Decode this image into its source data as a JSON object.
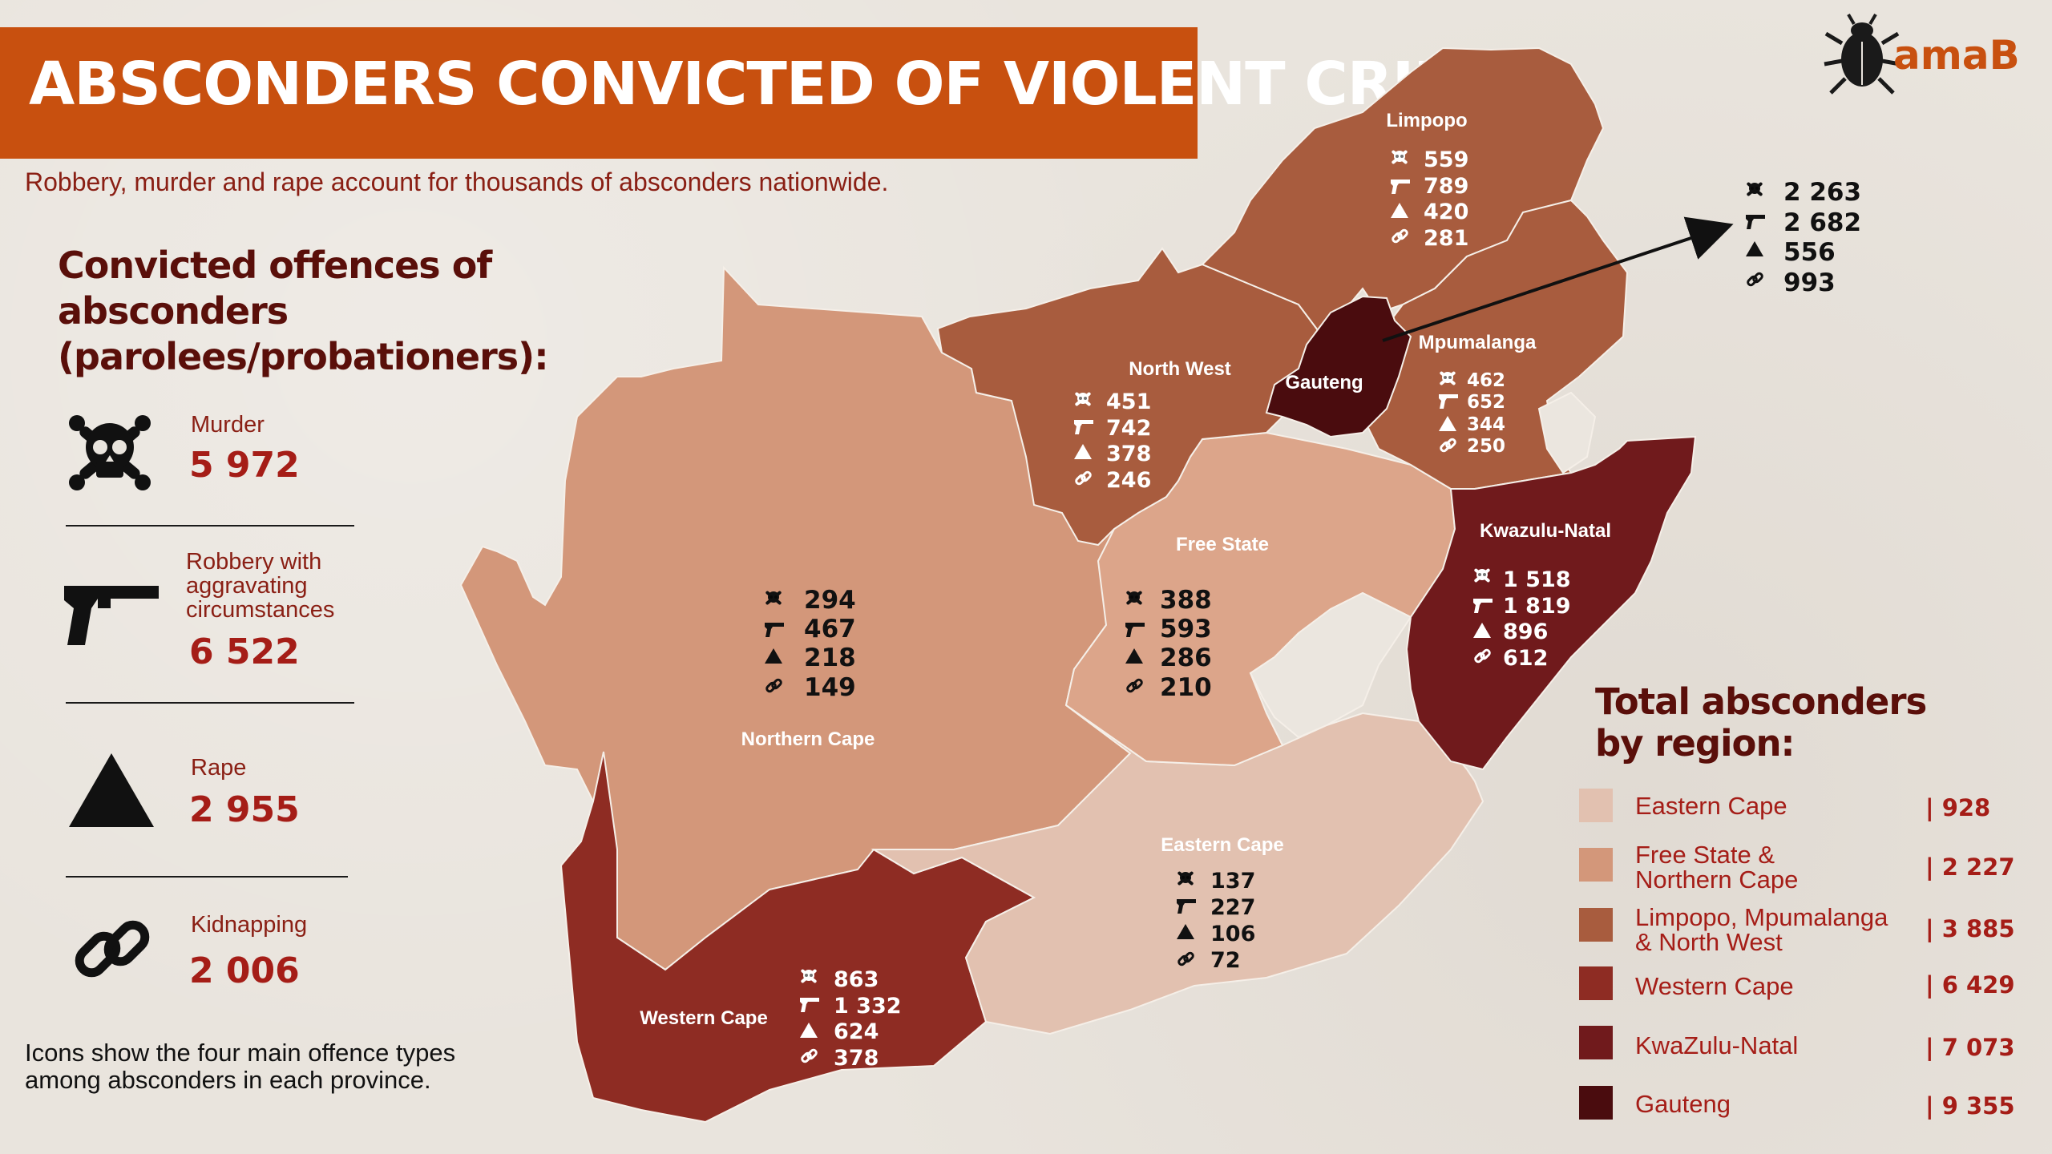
{
  "title": "ABSCONDERS CONVICTED OF VIOLENT CRIMES",
  "subtitle": "Robbery, murder and rape account for thousands of absconders nationwide.",
  "brand": "amaB",
  "offence_legend": {
    "heading_lines": [
      "Convicted offences of",
      "absconders",
      "(parolees/probationers):"
    ],
    "items": [
      {
        "label": "Murder",
        "value": "5 972",
        "icon": "skull-crossbones-icon"
      },
      {
        "label": "Robbery with aggravating circumstances",
        "label_lines": [
          "Robbery with",
          "aggravating",
          "circumstances"
        ],
        "value": "6 522",
        "icon": "pistol-icon"
      },
      {
        "label": "Rape",
        "value": "2 955",
        "icon": "triangle-icon"
      },
      {
        "label": "Kidnapping",
        "value": "2 006",
        "icon": "chain-link-icon"
      }
    ]
  },
  "footnote_lines": [
    "Icons show the four main offence types",
    "among absconders in each province."
  ],
  "provinces": [
    {
      "name": "Limpopo",
      "murder": "559",
      "robbery": "789",
      "rape": "420",
      "kidnapping": "281",
      "color": "#a85c3e"
    },
    {
      "name": "North West",
      "murder": "451",
      "robbery": "742",
      "rape": "378",
      "kidnapping": "246",
      "color": "#a85c3e"
    },
    {
      "name": "Mpumalanga",
      "murder": "462",
      "robbery": "652",
      "rape": "344",
      "kidnapping": "250",
      "color": "#a85c3e"
    },
    {
      "name": "Gauteng",
      "murder": "2 263",
      "robbery": "2 682",
      "rape": "556",
      "kidnapping": "993",
      "color": "#4a0c0e"
    },
    {
      "name": "Kwazulu-Natal",
      "murder": "1 518",
      "robbery": "1 819",
      "rape": "896",
      "kidnapping": "612",
      "color": "#701a1c"
    },
    {
      "name": "Free State",
      "murder": "388",
      "robbery": "593",
      "rape": "286",
      "kidnapping": "210",
      "color": "#dca58a"
    },
    {
      "name": "Northern Cape",
      "murder": "294",
      "robbery": "467",
      "rape": "218",
      "kidnapping": "149",
      "color": "#d3977a"
    },
    {
      "name": "Eastern Cape",
      "murder": "137",
      "robbery": "227",
      "rape": "106",
      "kidnapping": "72",
      "color": "#e2c1b0"
    },
    {
      "name": "Western Cape",
      "murder": "863",
      "robbery": "1 332",
      "rape": "624",
      "kidnapping": "378",
      "color": "#8e2c23"
    }
  ],
  "region_legend": {
    "heading_lines": [
      "Total absconders",
      "by region:"
    ],
    "items": [
      {
        "label": "Eastern Cape",
        "label_lines": [
          "Eastern Cape"
        ],
        "value": "| 928",
        "color": "#e2c1b0"
      },
      {
        "label": "Free State & Northern Cape",
        "label_lines": [
          "Free State &",
          "Northern Cape"
        ],
        "value": "| 2 227",
        "color": "#d3977a"
      },
      {
        "label": "Limpopo, Mpumalanga & North West",
        "label_lines": [
          "Limpopo, Mpumalanga",
          "& North West"
        ],
        "value": "| 3 885",
        "color": "#a85c3e"
      },
      {
        "label": "Western Cape",
        "label_lines": [
          "Western Cape"
        ],
        "value": "| 6 429",
        "color": "#8e2c23"
      },
      {
        "label": "KwaZulu-Natal",
        "label_lines": [
          "KwaZulu-Natal"
        ],
        "value": "| 7 073",
        "color": "#701a1c"
      },
      {
        "label": "Gauteng",
        "label_lines": [
          "Gauteng"
        ],
        "value": "| 9 355",
        "color": "#4a0c0e"
      }
    ]
  }
}
